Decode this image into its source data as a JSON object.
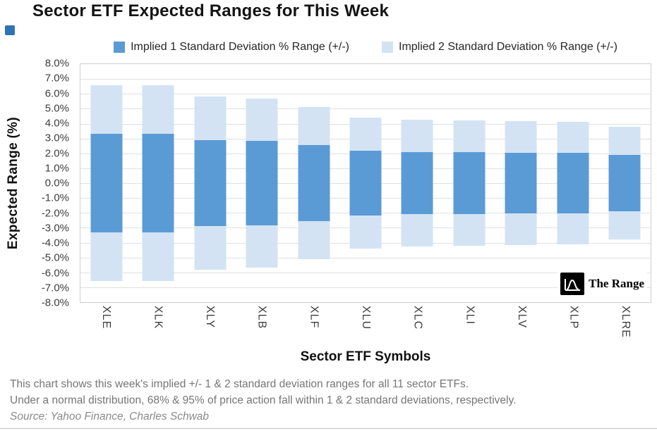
{
  "page": {
    "title": "Sector ETF Expected Ranges for This Week"
  },
  "legend": {
    "items": [
      {
        "label": "Implied 1 Standard Deviation % Range (+/-)"
      },
      {
        "label": "Implied 2 Standard Deviation % Range (+/-)"
      }
    ]
  },
  "y_axis": {
    "title": "Expected Range (%)",
    "ticks": [
      "8.0%",
      "7.0%",
      "6.0%",
      "5.0%",
      "4.0%",
      "3.0%",
      "2.0%",
      "1.0%",
      "0.0%",
      "-1.0%",
      "-2.0%",
      "-3.0%",
      "-4.0%",
      "-5.0%",
      "-6.0%",
      "-7.0%",
      "-8.0%"
    ]
  },
  "x_axis": {
    "title": "Sector ETF Symbols"
  },
  "chart_data": {
    "type": "bar",
    "title": "Sector ETF Expected Ranges for This Week",
    "categories": [
      "XLE",
      "XLK",
      "XLY",
      "XLB",
      "XLF",
      "XLU",
      "XLC",
      "XLI",
      "XLV",
      "XLP",
      "XLRE"
    ],
    "series": [
      {
        "name": "Implied 1 Standard Deviation % Range (+/-)",
        "values": [
          3.3,
          3.3,
          2.9,
          2.85,
          2.55,
          2.2,
          2.1,
          2.1,
          2.05,
          2.05,
          1.9
        ]
      },
      {
        "name": "Implied 2 Standard Deviation % Range (+/-)",
        "values": [
          6.6,
          6.6,
          5.8,
          5.7,
          5.1,
          4.4,
          4.25,
          4.2,
          4.15,
          4.1,
          3.8
        ]
      }
    ],
    "value_note": "bars are symmetric +/- ranges around 0",
    "ylim": [
      -8,
      8
    ],
    "xlabel": "Sector ETF Symbols",
    "ylabel": "Expected Range (%)",
    "grid": true,
    "legend_position": "top"
  },
  "colors": {
    "one_sd": "#5b9bd5",
    "two_sd": "#d3e3f4",
    "grid": "#e0e0e0"
  },
  "footer": {
    "line1": "This chart shows this week's implied +/- 1 & 2 standard deviation ranges for all 11 sector ETFs.",
    "line2": "Under a normal distribution, 68% & 95% of price action fall within 1 & 2 standard deviations, respectively.",
    "source": "Source: Yahoo Finance, Charles Schwab"
  },
  "logo": {
    "text": "The Range"
  }
}
